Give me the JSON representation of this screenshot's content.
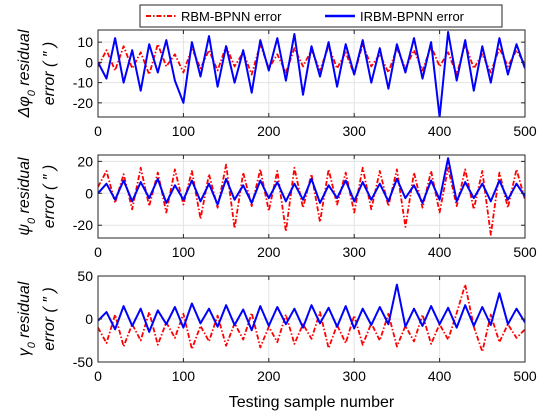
{
  "chart_data": [
    {
      "type": "line",
      "ylabel": [
        "Δφ",
        "0",
        " residual",
        "error ( ″ )"
      ],
      "xlim": [
        0,
        500
      ],
      "ylim": [
        -27,
        16
      ],
      "xticks": [
        0,
        100,
        200,
        300,
        400,
        500
      ],
      "yticks": [
        -20,
        -10,
        0,
        10
      ],
      "grid": true,
      "legend": "top",
      "series": [
        {
          "name": "RBM-BPNN error",
          "color": "#ff0000",
          "style": "dash-dot",
          "x": [
            0,
            10,
            20,
            30,
            40,
            50,
            60,
            70,
            80,
            90,
            100,
            110,
            120,
            130,
            140,
            150,
            160,
            170,
            180,
            190,
            200,
            210,
            220,
            230,
            240,
            250,
            260,
            270,
            280,
            290,
            300,
            310,
            320,
            330,
            340,
            350,
            360,
            370,
            380,
            390,
            400,
            410,
            420,
            430,
            440,
            450,
            460,
            470,
            480,
            490,
            500
          ],
          "y": [
            -2,
            6,
            -4,
            8,
            -3,
            5,
            -6,
            9,
            -2,
            4,
            -5,
            7,
            -3,
            6,
            -4,
            8,
            -2,
            5,
            -6,
            9,
            -3,
            4,
            -5,
            7,
            -2,
            6,
            -4,
            8,
            -3,
            5,
            -6,
            9,
            -2,
            4,
            -5,
            7,
            -3,
            6,
            -4,
            8,
            -2,
            5,
            -6,
            9,
            -3,
            4,
            -5,
            7,
            -2,
            6,
            -1
          ]
        },
        {
          "name": "IRBM-BPNN error",
          "color": "#0000ff",
          "style": "solid",
          "x": [
            0,
            10,
            20,
            30,
            40,
            50,
            60,
            70,
            80,
            90,
            100,
            110,
            120,
            130,
            140,
            150,
            160,
            170,
            180,
            190,
            200,
            210,
            220,
            230,
            240,
            250,
            260,
            270,
            280,
            290,
            300,
            310,
            320,
            330,
            340,
            350,
            360,
            370,
            380,
            390,
            400,
            410,
            420,
            430,
            440,
            450,
            460,
            470,
            480,
            490,
            500
          ],
          "y": [
            0,
            -8,
            12,
            -10,
            6,
            -14,
            9,
            -5,
            11,
            -9,
            -20,
            10,
            -7,
            13,
            -12,
            8,
            -10,
            6,
            -15,
            11,
            -4,
            12,
            -9,
            14,
            -16,
            8,
            -7,
            10,
            -12,
            9,
            -6,
            11,
            -10,
            7,
            -13,
            9,
            -5,
            12,
            -8,
            10,
            -27,
            15,
            -9,
            11,
            -14,
            8,
            -10,
            12,
            -6,
            9,
            -3
          ]
        }
      ]
    },
    {
      "type": "line",
      "ylabel": [
        "ψ",
        "0",
        " residual",
        "error ( ″ )"
      ],
      "xlim": [
        0,
        500
      ],
      "ylim": [
        -28,
        24
      ],
      "xticks": [
        0,
        100,
        200,
        300,
        400,
        500
      ],
      "yticks": [
        -20,
        0,
        20
      ],
      "grid": true,
      "series": [
        {
          "name": "RBM-BPNN error",
          "color": "#ff0000",
          "style": "dash-dot",
          "x": [
            0,
            10,
            20,
            30,
            40,
            50,
            60,
            70,
            80,
            90,
            100,
            110,
            120,
            130,
            140,
            150,
            160,
            170,
            180,
            190,
            200,
            210,
            220,
            230,
            240,
            250,
            260,
            270,
            280,
            290,
            300,
            310,
            320,
            330,
            340,
            350,
            360,
            370,
            380,
            390,
            400,
            410,
            420,
            430,
            440,
            450,
            460,
            470,
            480,
            490,
            500
          ],
          "y": [
            4,
            14,
            -6,
            12,
            -10,
            16,
            -8,
            13,
            -12,
            15,
            -7,
            14,
            -16,
            12,
            -9,
            18,
            -22,
            13,
            -8,
            15,
            -11,
            14,
            -24,
            16,
            -9,
            12,
            -18,
            15,
            -7,
            13,
            -12,
            16,
            -10,
            14,
            -8,
            15,
            -21,
            13,
            -9,
            14,
            -12,
            16,
            -8,
            15,
            -10,
            14,
            -26,
            13,
            -9,
            15,
            -4
          ]
        },
        {
          "name": "IRBM-BPNN error",
          "color": "#0000ff",
          "style": "solid",
          "x": [
            0,
            10,
            20,
            30,
            40,
            50,
            60,
            70,
            80,
            90,
            100,
            110,
            120,
            130,
            140,
            150,
            160,
            170,
            180,
            190,
            200,
            210,
            220,
            230,
            240,
            250,
            260,
            270,
            280,
            290,
            300,
            310,
            320,
            330,
            340,
            350,
            360,
            370,
            380,
            390,
            400,
            410,
            420,
            430,
            440,
            450,
            460,
            470,
            480,
            490,
            500
          ],
          "y": [
            0,
            6,
            -4,
            8,
            -5,
            7,
            -3,
            9,
            -6,
            5,
            -4,
            8,
            -5,
            6,
            -7,
            9,
            -4,
            5,
            -6,
            8,
            -3,
            7,
            -5,
            6,
            -4,
            9,
            -6,
            5,
            -3,
            8,
            -5,
            7,
            -4,
            6,
            -5,
            9,
            -3,
            5,
            -6,
            8,
            -4,
            22,
            -5,
            7,
            -3,
            6,
            -5,
            8,
            -4,
            6,
            -2
          ]
        }
      ]
    },
    {
      "type": "line",
      "ylabel": [
        "γ",
        "0",
        " residual",
        "error ( ″ )"
      ],
      "xlim": [
        0,
        500
      ],
      "ylim": [
        -50,
        50
      ],
      "xticks": [
        0,
        100,
        200,
        300,
        400,
        500
      ],
      "yticks": [
        -50,
        0,
        50
      ],
      "xlabel": "Testing sample number",
      "grid": true,
      "series": [
        {
          "name": "RBM-BPNN error",
          "color": "#ff0000",
          "style": "dash-dot",
          "x": [
            0,
            10,
            20,
            30,
            40,
            50,
            60,
            70,
            80,
            90,
            100,
            110,
            120,
            130,
            140,
            150,
            160,
            170,
            180,
            190,
            200,
            210,
            220,
            230,
            240,
            250,
            260,
            270,
            280,
            290,
            300,
            310,
            320,
            330,
            340,
            350,
            360,
            370,
            380,
            390,
            400,
            410,
            420,
            430,
            440,
            450,
            460,
            470,
            480,
            490,
            500
          ],
          "y": [
            -10,
            -28,
            5,
            -32,
            -6,
            -25,
            8,
            -30,
            -4,
            -22,
            6,
            -35,
            -8,
            -26,
            4,
            -31,
            -5,
            -24,
            7,
            -33,
            -9,
            -27,
            5,
            -29,
            -6,
            -23,
            8,
            -34,
            -7,
            -28,
            4,
            -30,
            -5,
            -25,
            6,
            -32,
            -8,
            -26,
            5,
            -29,
            -6,
            -24,
            7,
            40,
            -9,
            -38,
            5,
            -27,
            -6,
            -22,
            -12
          ]
        },
        {
          "name": "IRBM-BPNN error",
          "color": "#0000ff",
          "style": "solid",
          "x": [
            0,
            10,
            20,
            30,
            40,
            50,
            60,
            70,
            80,
            90,
            100,
            110,
            120,
            130,
            140,
            150,
            160,
            170,
            180,
            190,
            200,
            210,
            220,
            230,
            240,
            250,
            260,
            270,
            280,
            290,
            300,
            310,
            320,
            330,
            340,
            350,
            360,
            370,
            380,
            390,
            400,
            410,
            420,
            430,
            440,
            450,
            460,
            470,
            480,
            490,
            500
          ],
          "y": [
            -2,
            8,
            -12,
            15,
            -8,
            12,
            -15,
            10,
            -6,
            14,
            -10,
            18,
            -5,
            12,
            -9,
            16,
            -7,
            11,
            -13,
            15,
            -8,
            14,
            -6,
            12,
            -10,
            16,
            -5,
            13,
            -9,
            15,
            -11,
            12,
            -7,
            14,
            -6,
            40,
            -9,
            12,
            -8,
            15,
            -6,
            13,
            -10,
            16,
            -8,
            14,
            -7,
            30,
            -6,
            12,
            -4
          ]
        }
      ]
    }
  ]
}
